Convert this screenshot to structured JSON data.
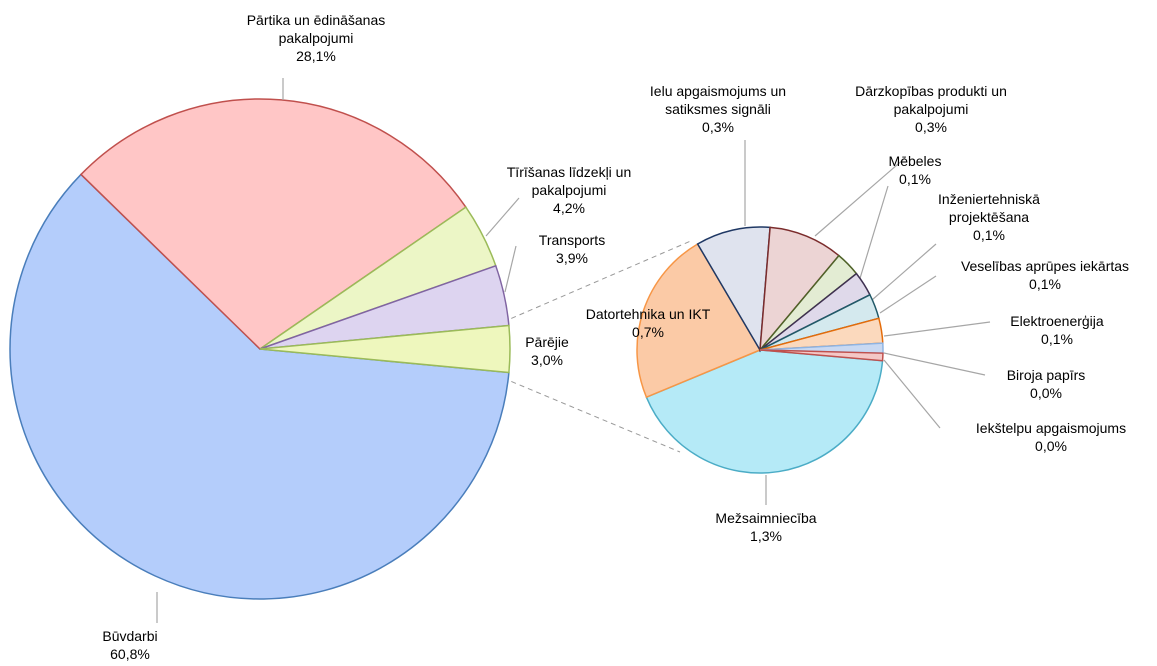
{
  "chart_data": [
    {
      "type": "pie",
      "categories": [
        "Būvdarbi",
        "Pārtika un ēdināšanas pakalpojumi",
        "Tīrīšanas līdzekļi un pakalpojumi",
        "Transports",
        "Pārējie"
      ],
      "values": [
        60.8,
        28.1,
        4.2,
        3.9,
        3.0
      ],
      "value_labels": [
        "60,8%",
        "28,1%",
        "4,2%",
        "3,9%",
        "3,0%"
      ],
      "colors": [
        "#b4cdfb",
        "#ffc6c6",
        "#ecf6c6",
        "#ddd4f0",
        "#eef7bd"
      ]
    },
    {
      "type": "pie",
      "categories": [
        "Mežsaimniecība",
        "Datortehnika un IKT",
        "Ielu apgaismojums un satiksmes signāli",
        "Dārzkopības produkti un pakalpojumi",
        "Mēbeles",
        "Inženiertehniskā projektēšana",
        "Veselības aprūpes iekārtas",
        "Elektroenerģija",
        "Biroja papīrs",
        "Iekštelpu apgaismojums"
      ],
      "values": [
        1.3,
        0.7,
        0.3,
        0.3,
        0.1,
        0.1,
        0.1,
        0.1,
        0.04,
        0.03
      ],
      "value_labels": [
        "1,3%",
        "0,7%",
        "0,3%",
        "0,3%",
        "0,1%",
        "0,1%",
        "0,1%",
        "0,1%",
        "0,0%",
        "0,0%"
      ],
      "colors": [
        "#b5eaf7",
        "#fbcaa6",
        "#dfe3ee",
        "#ecd4d4",
        "#e3ecd3",
        "#dfd9ea",
        "#d4e9ee",
        "#fbd9bd",
        "#c9d9f2",
        "#f4c7c6"
      ]
    }
  ]
}
